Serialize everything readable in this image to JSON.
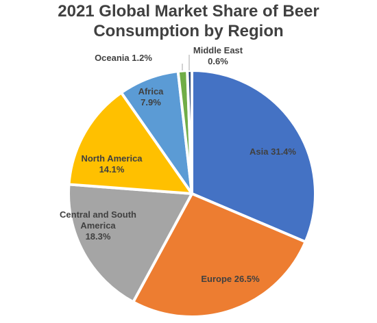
{
  "chart_data": {
    "type": "pie",
    "title": "2021 Global Market Share of Beer Consumption by Region",
    "categories": [
      "Asia",
      "Europe",
      "Central and South America",
      "North America",
      "Africa",
      "Oceania",
      "Middle East"
    ],
    "values": [
      31.4,
      26.5,
      18.3,
      14.1,
      7.9,
      1.2,
      0.6
    ],
    "value_labels": [
      "31.4%",
      "26.5%",
      "18.3%",
      "14.1%",
      "7.9%",
      "1.2%",
      "0.6%"
    ],
    "colors": [
      "#4472c4",
      "#ed7d31",
      "#a5a5a5",
      "#ffc000",
      "#5b9bd5",
      "#70ad47",
      "#264478"
    ]
  }
}
